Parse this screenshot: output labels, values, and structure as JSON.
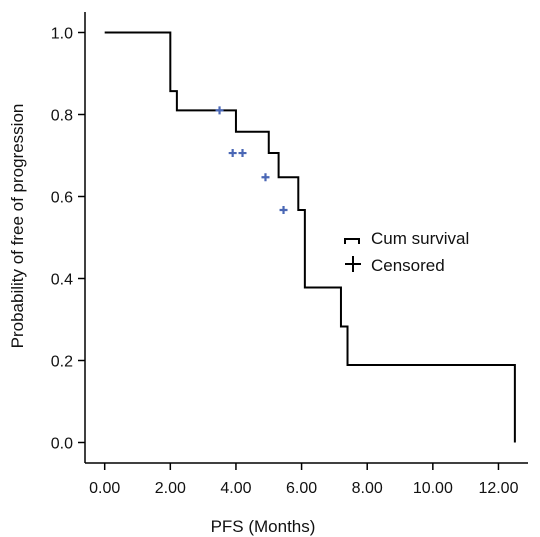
{
  "chart_data": {
    "type": "line",
    "title": "",
    "xlabel": "PFS (Months)",
    "ylabel": "Probability of free of progression",
    "xlim": [
      -0.6,
      12.9
    ],
    "ylim": [
      -0.05,
      1.05
    ],
    "xticks": [
      0,
      2,
      4,
      6,
      8,
      10,
      12
    ],
    "xtick_labels": [
      "0.00",
      "2.00",
      "4.00",
      "6.00",
      "8.00",
      "10.00",
      "12.00"
    ],
    "yticks": [
      0.0,
      0.2,
      0.4,
      0.6,
      0.8,
      1.0
    ],
    "ytick_labels": [
      "0.0",
      "0.2",
      "0.4",
      "0.6",
      "0.8",
      "1.0"
    ],
    "grid": false,
    "legend_position": "center-right",
    "line_color": "#000000",
    "censor_color": "#4a67b5",
    "series": [
      {
        "name": "Cum survival",
        "kind": "step",
        "x": [
          0.0,
          2.0,
          2.2,
          4.0,
          5.0,
          5.3,
          5.9,
          6.1,
          7.2,
          7.4,
          12.5
        ],
        "y": [
          1.0,
          0.857,
          0.81,
          0.758,
          0.706,
          0.647,
          0.567,
          0.378,
          0.283,
          0.189,
          0.094
        ],
        "end_x": 12.5,
        "end_y": 0.0
      },
      {
        "name": "Censored",
        "kind": "censored",
        "x": [
          3.5,
          3.9,
          4.2,
          4.9,
          5.45
        ],
        "y": [
          0.81,
          0.706,
          0.706,
          0.647,
          0.567
        ]
      }
    ]
  }
}
